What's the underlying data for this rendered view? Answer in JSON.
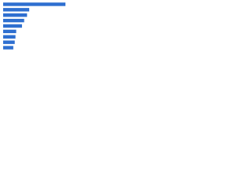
{
  "chart_data": {
    "type": "bar",
    "orientation": "horizontal",
    "categories": [
      null,
      null,
      null,
      null,
      null,
      null,
      null,
      null,
      null
    ],
    "values": [
      86,
      36,
      33,
      29,
      26,
      18,
      17,
      16,
      14
    ],
    "color": "#2e6fd0",
    "xlim": [
      0,
      100
    ]
  }
}
